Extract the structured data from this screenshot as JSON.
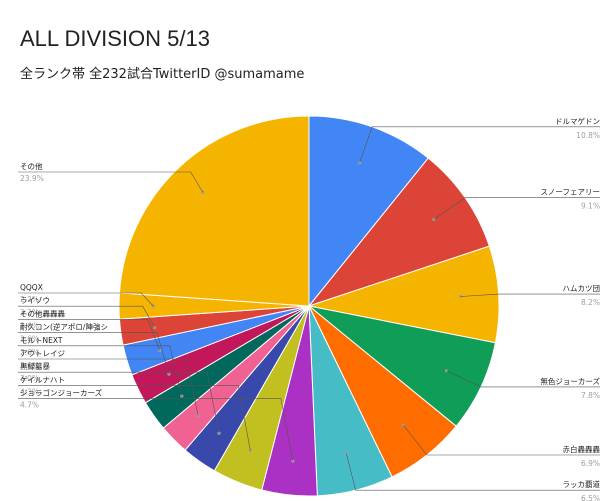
{
  "header": {
    "title": "ALL DIVISION 5/13",
    "subtitle": "全ランク帯 全232試合TwitterID @sumamame"
  },
  "chart_data": {
    "type": "pie",
    "title": "ALL DIVISION 5/13",
    "subtitle": "全ランク帯 全232試合TwitterID @sumamame",
    "start_angle_deg": 0,
    "direction": "clockwise",
    "slices": [
      {
        "label": "ドルマゲドン",
        "pct_text": "10.8%",
        "value": 10.8,
        "color": "#4285f4",
        "side": "right"
      },
      {
        "label": "スノーフェアリー",
        "pct_text": "9.1%",
        "value": 9.1,
        "color": "#db4437",
        "side": "right"
      },
      {
        "label": "ハムカツ団",
        "pct_text": "8.2%",
        "value": 8.2,
        "color": "#f4b400",
        "side": "right"
      },
      {
        "label": "無色ジョーカーズ",
        "pct_text": "7.8%",
        "value": 7.8,
        "color": "#0f9d58",
        "side": "right"
      },
      {
        "label": "赤白轟轟轟",
        "pct_text": "6.9%",
        "value": 6.9,
        "color": "#ff6d00",
        "side": "right"
      },
      {
        "label": "ラッカ覇道",
        "pct_text": "6.5%",
        "value": 6.5,
        "color": "#46bdc6",
        "side": "right"
      },
      {
        "label": "ジョラゴンジョーカーズ",
        "pct_text": "4.7%",
        "value": 4.7,
        "color": "#ab30c4",
        "side": "left"
      },
      {
        "label": "ゲイルナハト",
        "pct_text": "4.3%",
        "value": 4.3,
        "color": "#c2c021",
        "side": "left"
      },
      {
        "label": "黒緑墓暴",
        "pct_text": "3.0%",
        "value": 3.0,
        "color": "#3949ab",
        "side": "left"
      },
      {
        "label": "アウトレイジ",
        "pct_text": "2.6%",
        "value": 2.6,
        "color": "#f06292",
        "side": "left"
      },
      {
        "label": "モルトNEXT",
        "pct_text": "2.6%",
        "value": 2.6,
        "color": "#00695c",
        "side": "left"
      },
      {
        "label": "耐久コン(逆アポロ/陣強シ",
        "pct_text": "2.6%",
        "value": 2.6,
        "color": "#c2185b",
        "side": "left"
      },
      {
        "label": "その他轟轟轟",
        "pct_text": "2.6%",
        "value": 2.6,
        "color": "#4285f4",
        "side": "left"
      },
      {
        "label": "ライゾウ",
        "pct_text": "2.2%",
        "value": 2.2,
        "color": "#db4437",
        "side": "left"
      },
      {
        "label": "QQQX",
        "pct_text": "2.2%",
        "value": 2.2,
        "color": "#f4b400",
        "side": "left"
      },
      {
        "label": "その他",
        "pct_text": "23.9%",
        "value": 23.9,
        "color": "#f4b400",
        "side": "left"
      }
    ]
  }
}
